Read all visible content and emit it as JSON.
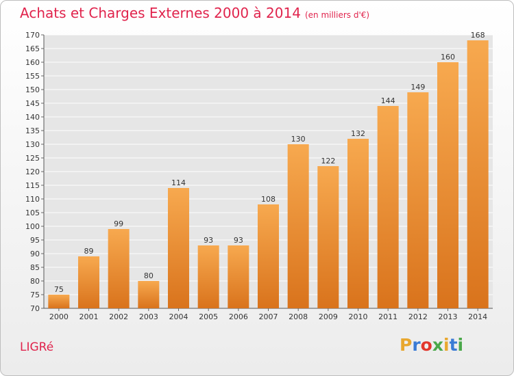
{
  "header": {
    "title": "Achats et Charges Externes 2000 à 2014",
    "unit": "(en milliers d'€)"
  },
  "footer": {
    "commune": "LIGRé",
    "logo_letters": [
      "P",
      "r",
      "o",
      "x",
      "i",
      "t",
      "i"
    ],
    "logo_colors": [
      "#e8a72e",
      "#3a7bd5",
      "#e2372d",
      "#4aa84a",
      "#e8a72e",
      "#3a7bd5",
      "#4aa84a"
    ]
  },
  "colors": {
    "bar_light": "#f7a94f",
    "bar_dark": "#d9731c",
    "title": "#e0234c",
    "grid": "#ffffff"
  },
  "chart_data": {
    "type": "bar",
    "categories": [
      "2000",
      "2001",
      "2002",
      "2003",
      "2004",
      "2005",
      "2006",
      "2007",
      "2008",
      "2009",
      "2010",
      "2011",
      "2012",
      "2013",
      "2014"
    ],
    "values": [
      75,
      89,
      99,
      80,
      114,
      93,
      93,
      108,
      130,
      122,
      132,
      144,
      149,
      160,
      168
    ],
    "title": "Achats et Charges Externes 2000 à 2014",
    "ylim": [
      70,
      170
    ],
    "yticks": [
      70,
      75,
      80,
      85,
      90,
      95,
      100,
      105,
      110,
      115,
      120,
      125,
      130,
      135,
      140,
      145,
      150,
      155,
      160,
      165,
      170
    ],
    "grid": true,
    "data_labels": true
  }
}
